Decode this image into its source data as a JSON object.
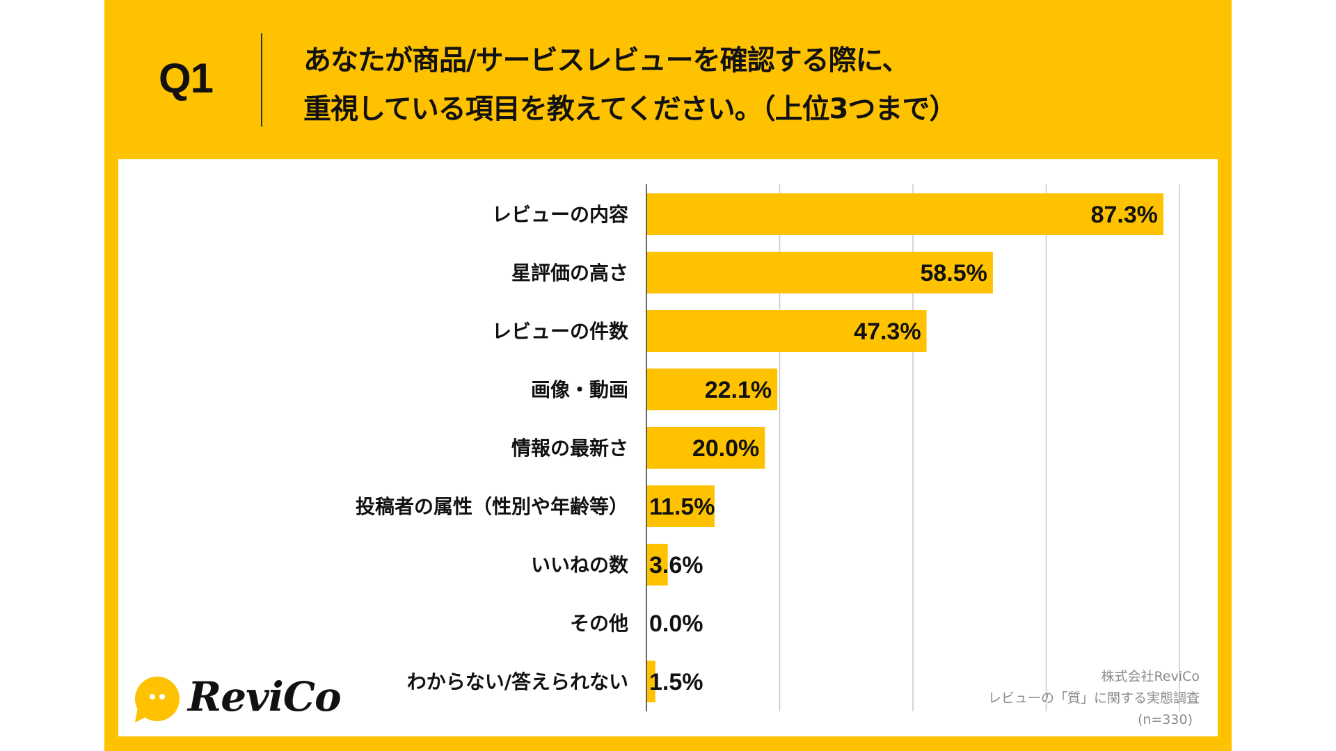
{
  "header": {
    "question_number": "Q1",
    "question_lines": [
      "あなたが商品/サービスレビューを確認する際に、",
      "重視している項目を教えてください。（上位3つまで）"
    ]
  },
  "colors": {
    "brand_yellow": "#FEC200",
    "bar": "#FEC200",
    "text": "#111111",
    "gridline": "#c8c8c8",
    "axis": "#333333",
    "footer_text": "#8a8a8a"
  },
  "logo": {
    "icon": "speech-bubble-icon",
    "text": "ReviCo"
  },
  "footer": {
    "company": "株式会社ReviCo",
    "survey": "レビューの「質」に関する実態調査",
    "sample": "(n=330)"
  },
  "chart_data": {
    "type": "bar",
    "orientation": "horizontal",
    "title": "あなたが商品/サービスレビューを確認する際に、重視している項目を教えてください。（上位3つまで）",
    "xlabel": "",
    "ylabel": "",
    "unit": "%",
    "xlim": [
      0,
      90
    ],
    "grid": true,
    "gridline_values": [
      22.5,
      45,
      67.5,
      90
    ],
    "legend": "none",
    "categories": [
      "レビューの内容",
      "星評価の高さ",
      "レビューの件数",
      "画像・動画",
      "情報の最新さ",
      "投稿者の属性（性別や年齢等）",
      "いいねの数",
      "その他",
      "わからない/答えられない"
    ],
    "values": [
      87.3,
      58.5,
      47.3,
      22.1,
      20.0,
      11.5,
      3.6,
      0.0,
      1.5
    ],
    "value_labels": [
      "87.3%",
      "58.5%",
      "47.3%",
      "22.1%",
      "20.0%",
      "11.5%",
      "3.6%",
      "0.0%",
      "1.5%"
    ]
  }
}
